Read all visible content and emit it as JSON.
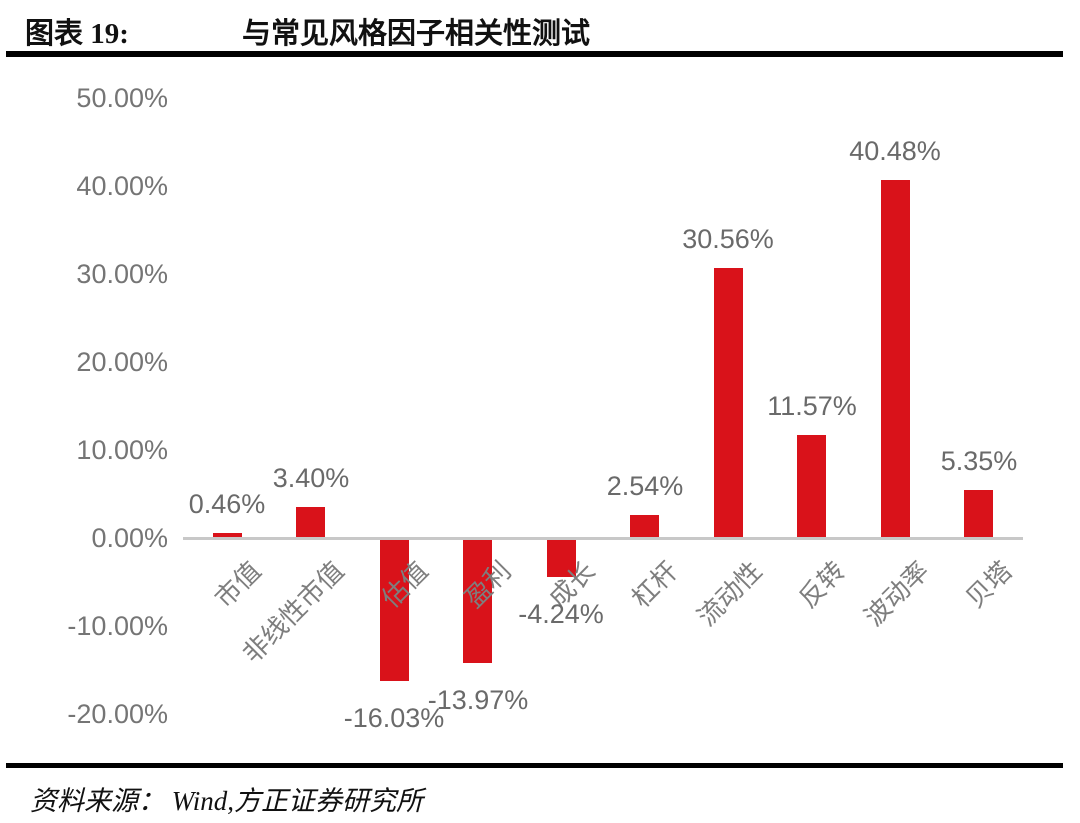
{
  "header": {
    "figure_label": "图表 19:",
    "title": "与常见风格因子相关性测试"
  },
  "footer": {
    "source": "资料来源： Wind,方正证券研究所"
  },
  "chart_data": {
    "type": "bar",
    "title": "与常见风格因子相关性测试",
    "categories": [
      "市值",
      "非线性市值",
      "估值",
      "盈利",
      "成长",
      "杠杆",
      "流动性",
      "反转",
      "波动率",
      "贝塔"
    ],
    "values": [
      0.46,
      3.4,
      -16.03,
      -13.97,
      -4.24,
      2.54,
      30.56,
      11.57,
      40.48,
      5.35
    ],
    "value_labels": [
      "0.46%",
      "3.40%",
      "-16.03%",
      "-13.97%",
      "-4.24%",
      "2.54%",
      "30.56%",
      "11.57%",
      "40.48%",
      "5.35%"
    ],
    "y_ticks": [
      "50.00%",
      "40.00%",
      "30.00%",
      "20.00%",
      "10.00%",
      "0.00%",
      "-10.00%",
      "-20.00%"
    ],
    "y_tick_values": [
      50,
      40,
      30,
      20,
      10,
      0,
      -10,
      -20
    ],
    "ylim": [
      -20,
      50
    ],
    "xlabel": "",
    "ylabel": "",
    "grid": false,
    "legend": null,
    "bar_color": "#d9121a",
    "axis_line_color": "#c8c8c8",
    "tick_label_color": "#757575",
    "value_label_color": "#6a6a6a",
    "category_label_color": "#7e7e7e"
  }
}
